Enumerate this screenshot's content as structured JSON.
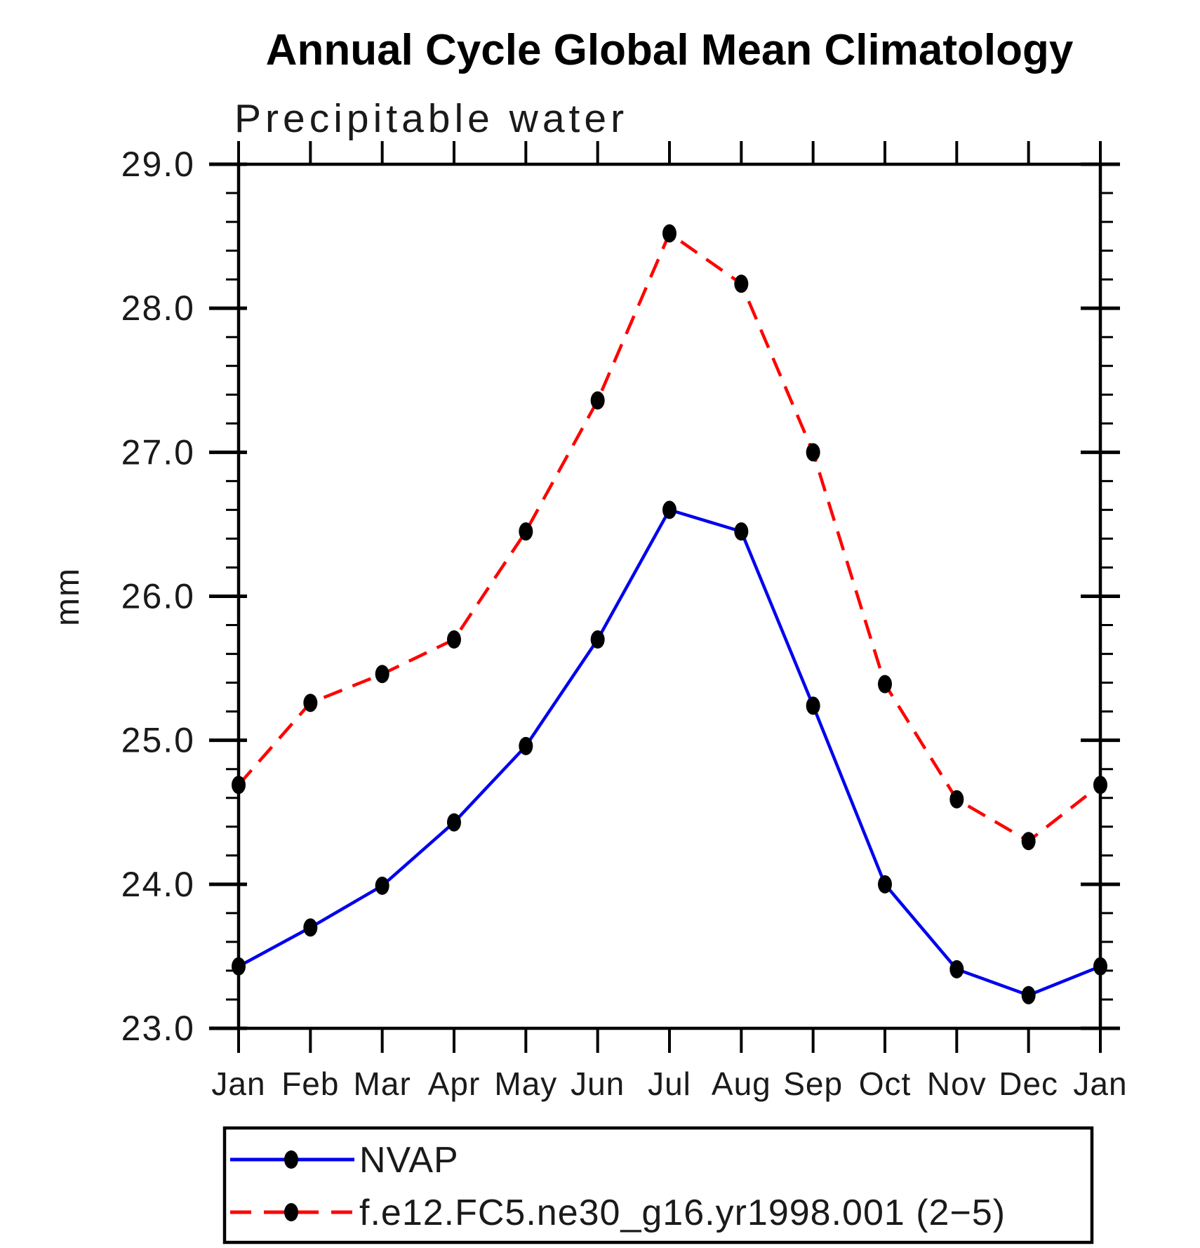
{
  "title": "Annual Cycle Global Mean Climatology",
  "subtitle": "Precipitable water",
  "y_axis": {
    "unit": "mm",
    "min": 23.0,
    "max": 29.0,
    "major_step": 1.0,
    "minor_step": 0.2,
    "tick_values": [
      23.0,
      24.0,
      25.0,
      26.0,
      27.0,
      28.0,
      29.0
    ],
    "tick_labels": [
      "23.0",
      "24.0",
      "25.0",
      "26.0",
      "27.0",
      "28.0",
      "29.0"
    ]
  },
  "x_axis": {
    "tick_labels": [
      "Jan",
      "Feb",
      "Mar",
      "Apr",
      "May",
      "Jun",
      "Jul",
      "Aug",
      "Sep",
      "Oct",
      "Nov",
      "Dec",
      "Jan"
    ]
  },
  "legend": {
    "position": "bottom",
    "entries": [
      {
        "id": "nvap",
        "label": "NVAP",
        "color": "#0000ee",
        "style": "solid",
        "marker": "filled-circle"
      },
      {
        "id": "model",
        "label": "f.e12.FC5.ne30_g16.yr1998.001 (2−5)",
        "color": "#ff0000",
        "style": "dashed",
        "marker": "filled-circle"
      }
    ]
  },
  "chart_data": {
    "type": "line",
    "title": "Annual Cycle Global Mean Climatology",
    "subtitle": "Precipitable water",
    "xlabel": "",
    "ylabel": "mm",
    "ylim": [
      23.0,
      29.0
    ],
    "grid": false,
    "legend_position": "bottom",
    "categories": [
      "Jan",
      "Feb",
      "Mar",
      "Apr",
      "May",
      "Jun",
      "Jul",
      "Aug",
      "Sep",
      "Oct",
      "Nov",
      "Dec",
      "Jan"
    ],
    "series": [
      {
        "id": "nvap",
        "name": "NVAP",
        "color": "#0000ee",
        "line_style": "solid",
        "marker": "filled-circle",
        "values": [
          23.43,
          23.7,
          23.99,
          24.43,
          24.96,
          25.7,
          26.6,
          26.45,
          25.24,
          24.0,
          23.41,
          23.23,
          23.43
        ]
      },
      {
        "id": "model",
        "name": "f.e12.FC5.ne30_g16.yr1998.001 (2−5)",
        "color": "#ff0000",
        "line_style": "dashed",
        "marker": "filled-circle",
        "values": [
          24.69,
          25.26,
          25.46,
          25.7,
          26.45,
          27.36,
          28.52,
          28.17,
          27.0,
          25.39,
          24.59,
          24.3,
          24.69
        ]
      }
    ]
  }
}
